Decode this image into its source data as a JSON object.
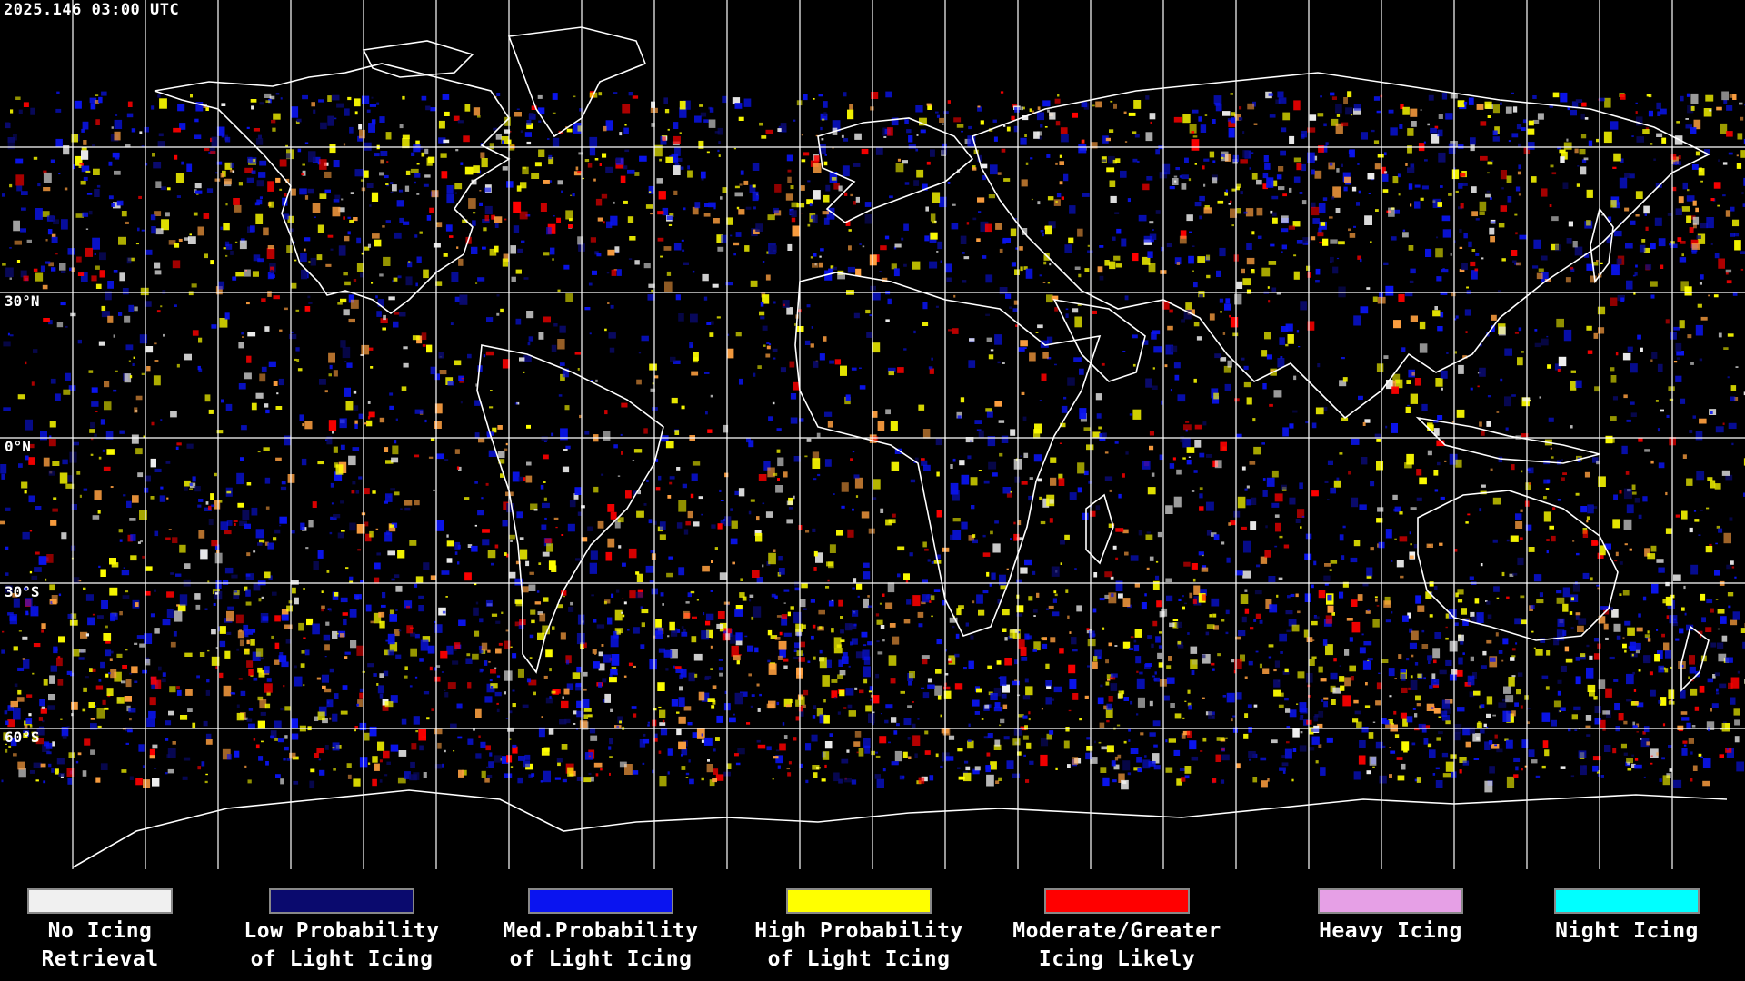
{
  "map": {
    "timestamp": "2025.146 03:00 UTC",
    "lat_labels": {
      "n30": "30°N",
      "eq": "0°N",
      "s30": "30°S",
      "s60": "60°S"
    },
    "grid": {
      "lon_lines_deg": [
        -165,
        -150,
        -135,
        -120,
        -105,
        -90,
        -75,
        -60,
        -45,
        -30,
        -15,
        0,
        15,
        30,
        45,
        60,
        75,
        90,
        105,
        120,
        135,
        150,
        165
      ],
      "lat_lines_deg": [
        60,
        30,
        0,
        -30,
        -60
      ]
    },
    "colors": {
      "background": "#000000",
      "grid": "#ffffff",
      "coast": "#ffffff"
    }
  },
  "legend": {
    "items": [
      {
        "label": "No Icing\nRetrieval",
        "color": "#f0f0f0"
      },
      {
        "label": "Low Probability\nof Light Icing",
        "color": "#0a0a6e"
      },
      {
        "label": "Med.Probability\nof Light Icing",
        "color": "#0a14f0"
      },
      {
        "label": "High Probability\nof Light Icing",
        "color": "#ffff00"
      },
      {
        "label": "Moderate/Greater\nIcing Likely",
        "color": "#ff0000"
      },
      {
        "label": "Heavy Icing",
        "color": "#e6a0e6"
      },
      {
        "label": "Night Icing",
        "color": "#00ffff"
      }
    ]
  }
}
